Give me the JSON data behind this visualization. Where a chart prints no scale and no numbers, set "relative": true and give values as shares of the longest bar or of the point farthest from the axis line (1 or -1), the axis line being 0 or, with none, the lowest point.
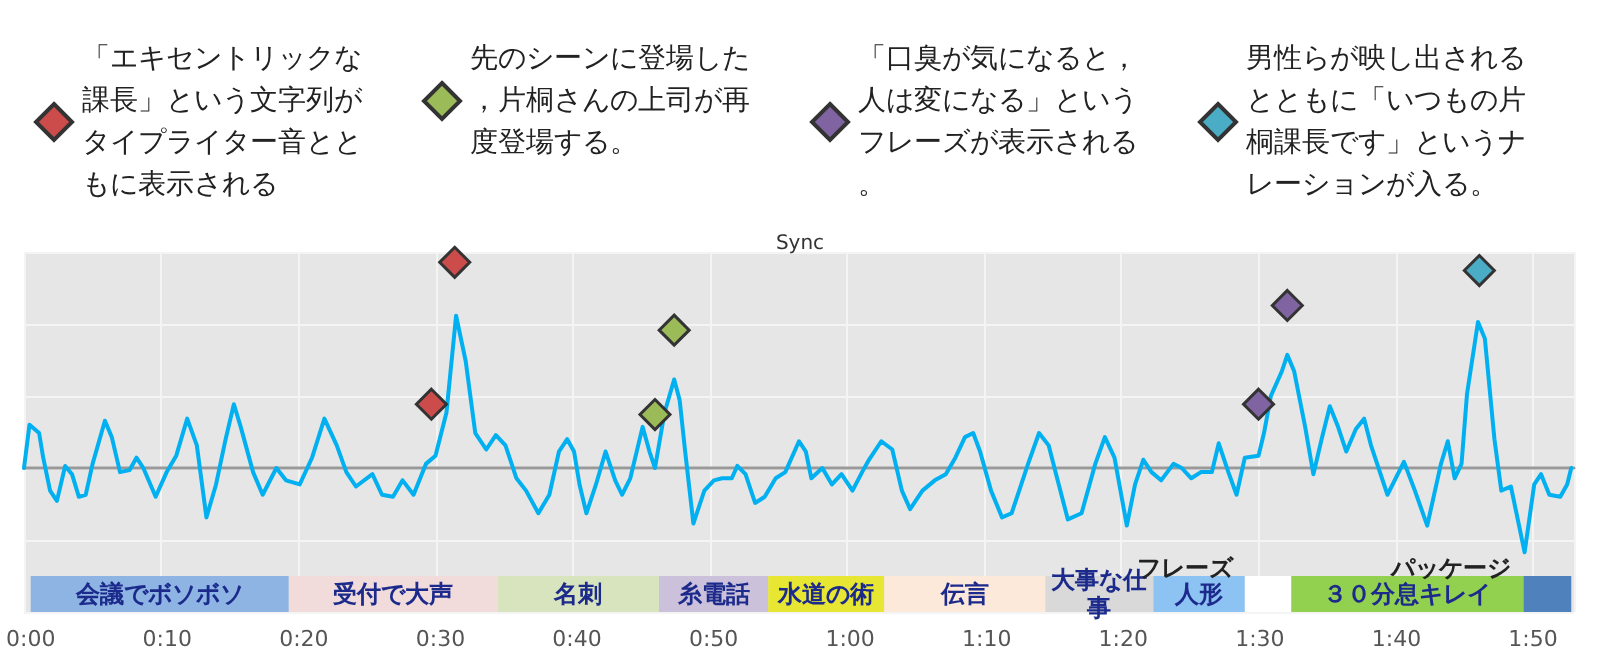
{
  "chart_data": [
    {
      "type": "line",
      "title": "Sync",
      "relative": true,
      "grid": true,
      "legend": "top",
      "marker": "none",
      "line_style": "solid",
      "tick_labels": false,
      "xlim": [
        0,
        113
      ],
      "xticks": [
        {
          "value": 0,
          "label": null
        },
        {
          "value": 10,
          "label": null
        },
        {
          "value": 20,
          "label": null
        },
        {
          "value": 30,
          "label": null
        },
        {
          "value": 40,
          "label": null
        },
        {
          "value": 50,
          "label": null
        },
        {
          "value": 60,
          "label": null
        },
        {
          "value": 70,
          "label": null
        },
        {
          "value": 80,
          "label": null
        },
        {
          "value": 90,
          "label": null
        },
        {
          "value": 100,
          "label": null
        },
        {
          "value": 110,
          "label": null
        }
      ],
      "series": [
        {
          "color": "#00b0f0",
          "x": [
            0,
            0.4,
            1.1,
            1.4,
            1.9,
            2.4,
            3.0,
            3.5,
            4.0,
            4.5,
            5.0,
            5.9,
            6.4,
            7.0,
            7.7,
            8.2,
            8.7,
            9.6,
            10.4,
            11.1,
            11.9,
            12.6,
            13.3,
            14.0,
            14.7,
            15.3,
            15.8,
            16.7,
            17.4,
            18.4,
            19.1,
            20.1,
            21.0,
            21.9,
            22.8,
            23.5,
            24.2,
            25.4,
            26.1,
            26.9,
            27.6,
            28.4,
            29.3,
            30.0,
            30.8,
            31.5,
            32.2,
            32.9,
            33.7,
            34.4,
            35.1,
            35.9,
            36.6,
            37.5,
            38.3,
            39.0,
            39.6,
            40.1,
            40.5,
            41.0,
            41.7,
            42.4,
            43.1,
            43.6,
            44.2,
            45.1,
            45.6,
            46.0,
            46.7,
            47.4,
            47.8,
            48.2,
            48.8,
            49.6,
            50.3,
            50.9,
            51.6,
            52.0,
            52.6,
            53.3,
            54.0,
            54.8,
            55.5,
            56.5,
            57.0,
            57.4,
            58.2,
            58.9,
            59.6,
            60.4,
            61.1,
            61.6,
            62.5,
            63.3,
            64.0,
            64.6,
            65.5,
            66.4,
            67.2,
            67.9,
            68.6,
            69.2,
            69.7,
            70.5,
            71.3,
            72.0,
            73.2,
            74.0,
            74.7,
            75.2,
            76.1,
            77.1,
            78.1,
            78.8,
            79.5,
            80.4,
            81.0,
            81.6,
            82.2,
            82.9,
            83.8,
            84.4,
            85.1,
            85.8,
            86.6,
            87.1,
            87.8,
            88.4,
            89.0,
            90.0,
            90.4,
            90.9,
            91.7,
            92.1,
            92.6,
            93.4,
            94.0,
            94.6,
            95.2,
            95.8,
            96.4,
            97.1,
            97.7,
            98.2,
            99.4,
            100.6,
            101.4,
            102.3,
            103.3,
            103.8,
            104.3,
            104.8,
            105.2,
            106.0,
            106.5,
            107.2,
            107.7,
            108.4,
            109.4,
            110.1,
            110.6,
            111.2,
            112.0,
            112.5,
            112.8
          ],
          "values": [
            0,
            0.21,
            0.17,
            0.05,
            -0.11,
            -0.16,
            0.01,
            -0.03,
            -0.14,
            -0.13,
            0.02,
            0.23,
            0.15,
            -0.02,
            -0.01,
            0.05,
            0,
            -0.14,
            -0.02,
            0.06,
            0.24,
            0.11,
            -0.24,
            -0.08,
            0.14,
            0.31,
            0.2,
            -0.02,
            -0.13,
            0,
            -0.06,
            -0.08,
            0.05,
            0.24,
            0.11,
            -0.02,
            -0.09,
            -0.03,
            -0.13,
            -0.14,
            -0.06,
            -0.13,
            0.02,
            0.06,
            0.27,
            0.74,
            0.52,
            0.17,
            0.09,
            0.16,
            0.11,
            -0.05,
            -0.11,
            -0.22,
            -0.13,
            0.08,
            0.14,
            0.08,
            -0.08,
            -0.22,
            -0.08,
            0.08,
            -0.06,
            -0.13,
            -0.05,
            0.2,
            0.08,
            0,
            0.27,
            0.43,
            0.33,
            0.08,
            -0.27,
            -0.11,
            -0.06,
            -0.05,
            -0.05,
            0.01,
            -0.03,
            -0.17,
            -0.14,
            -0.05,
            -0.02,
            0.13,
            0.08,
            -0.05,
            0,
            -0.08,
            -0.03,
            -0.11,
            -0.02,
            0.04,
            0.13,
            0.09,
            -0.11,
            -0.2,
            -0.11,
            -0.06,
            -0.03,
            0.05,
            0.15,
            0.17,
            0.08,
            -0.11,
            -0.24,
            -0.22,
            0.02,
            0.17,
            0.11,
            -0.02,
            -0.25,
            -0.22,
            0.02,
            0.15,
            0.05,
            -0.28,
            -0.08,
            0.04,
            -0.02,
            -0.06,
            0.02,
            0,
            -0.05,
            -0.02,
            -0.02,
            0.12,
            -0.02,
            -0.13,
            0.05,
            0.06,
            0.17,
            0.35,
            0.47,
            0.55,
            0.47,
            0.2,
            -0.03,
            0.14,
            0.3,
            0.2,
            0.08,
            0.19,
            0.24,
            0.11,
            -0.13,
            0.03,
            -0.11,
            -0.28,
            0.02,
            0.13,
            -0.05,
            0.02,
            0.36,
            0.71,
            0.63,
            0.14,
            -0.11,
            -0.09,
            -0.41,
            -0.08,
            -0.03,
            -0.13,
            -0.14,
            -0.08,
            0
          ]
        },
        {
          "name": "「エキセントリックな課長」という文字列がタイプライター音とともに表示される",
          "type": "scatter",
          "marker": "diamond",
          "color": "#cc4c4c",
          "x": [
            29.7,
            31.4
          ],
          "values": [
            0.31,
            1.0
          ]
        },
        {
          "name": "先のシーンに登場した，片桐さんの上司が再度登場する。",
          "type": "scatter",
          "marker": "diamond",
          "color": "#9bbb59",
          "x": [
            46.0,
            47.4
          ],
          "values": [
            0.26,
            0.67
          ]
        },
        {
          "name": "「口臭が気になると，人は変になる」というフレーズが表示される。",
          "type": "scatter",
          "marker": "diamond",
          "color": "#8064a2",
          "x": [
            90.0,
            92.1
          ],
          "values": [
            0.31,
            0.79
          ]
        },
        {
          "name": "男性らが映し出されるとともに「いつもの片桐課長です」というナレーションが入る。",
          "type": "scatter",
          "marker": "diamond",
          "color": "#4bacc6",
          "x": [
            106.1
          ],
          "values": [
            0.96
          ]
        }
      ]
    },
    {
      "type": "bar",
      "orientation": "horizontal",
      "stacked": true,
      "tick_labels": "x",
      "categories": [
        null
      ],
      "xlim": [
        0,
        113
      ],
      "xticks": [
        {
          "value": 0,
          "label": "0:00"
        },
        {
          "value": 10,
          "label": "0:10"
        },
        {
          "value": 20,
          "label": "0:20"
        },
        {
          "value": 30,
          "label": "0:30"
        },
        {
          "value": 40,
          "label": "0:40"
        },
        {
          "value": 50,
          "label": "0:50"
        },
        {
          "value": 60,
          "label": "1:00"
        },
        {
          "value": 70,
          "label": "1:10"
        },
        {
          "value": 80,
          "label": "1:20"
        },
        {
          "value": 90,
          "label": "1:30"
        },
        {
          "value": 100,
          "label": "1:40"
        },
        {
          "value": 110,
          "label": "1:50"
        }
      ],
      "series": [
        {
          "name": "会議でボソボソ",
          "color": "#8eb4e3",
          "values": [
            18.9
          ]
        },
        {
          "name": "受付で大声",
          "color": "#f2dcdb",
          "values": [
            15.3
          ]
        },
        {
          "name": "名刺",
          "color": "#d7e4bd",
          "values": [
            11.8
          ]
        },
        {
          "name": "糸電話",
          "color": "#ccc1da",
          "values": [
            8.0
          ]
        },
        {
          "name": "水道の術",
          "color": "#e6e633",
          "values": [
            8.5
          ]
        },
        {
          "name": "伝言",
          "color": "#fde9d9",
          "values": [
            11.8
          ]
        },
        {
          "name": "大事な仕事",
          "color": "#d9d9d9",
          "values": [
            7.9
          ]
        },
        {
          "name": "人形",
          "color": "#8dc3f2",
          "values": [
            6.7
          ]
        },
        {
          "name": "フレーズ",
          "color": "#ffffff",
          "values": [
            3.4
          ]
        },
        {
          "name": "３０分息キレイ",
          "color": "#92d050",
          "values": [
            17.0
          ]
        },
        {
          "name": "パッケージ",
          "color": "#4f81bd",
          "values": [
            3.5
          ]
        }
      ]
    }
  ]
}
